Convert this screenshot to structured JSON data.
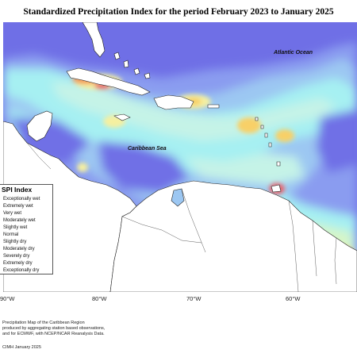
{
  "title": "Standardized Precipitation Index for the period February 2023 to January 2025",
  "map": {
    "labels": {
      "atlantic": "Atlantic Ocean",
      "caribbean": "Caribbean Sea"
    },
    "colors": {
      "exceptionally_wet": "#6f6fe6",
      "extremely_wet": "#8a9cf0",
      "very_wet": "#9cc7f2",
      "moderately_wet": "#a6f0f2",
      "slightly_wet": "#c5f3e7",
      "normal": "#d6f5c8",
      "slightly_dry": "#f5f0a0",
      "moderately_dry": "#f8d068",
      "severely_dry": "#f29a5a",
      "extremely_dry": "#e9606a",
      "exceptionally_dry": "#d42a2a",
      "land": "#ffffff"
    }
  },
  "legend": {
    "title": "SPI Index",
    "items": [
      "Exceptionally wet",
      "Extremely wet",
      "Very wet",
      "Moderately wet",
      "Slightly wet",
      "Normal",
      "Slightly dry",
      "Moderately dry",
      "Severely dry",
      "Extremely dry",
      "Exceptionally dry"
    ]
  },
  "axis": {
    "lon_labels": [
      "90°W",
      "80°W",
      "70°W",
      "60°W"
    ]
  },
  "footnote": {
    "line1": "Precipitation Map of the Caribbean Region",
    "line2": "produced by aggregating station based observations,",
    "line3": "and for ECMWF, with NCEP/NCAR Reanalysis Data.",
    "credit": "CIMH January 2025"
  }
}
